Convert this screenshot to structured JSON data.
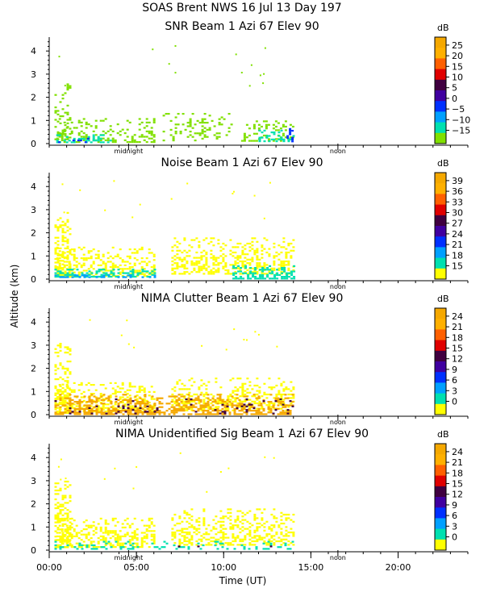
{
  "page_title": "SOAS Brent NWS  16 Jul 13 Day 197",
  "ylabel": "Altitude (km)",
  "xlabel": "Time (UT)",
  "x_ticks": [
    "00:00",
    "05:00",
    "10:00",
    "15:00",
    "20:00"
  ],
  "x_tick_hours": [
    0,
    5,
    10,
    15,
    20
  ],
  "x_range_hours": [
    0,
    24
  ],
  "marker_labels": [
    "midnight",
    "noon"
  ],
  "marker_hours": [
    4.55,
    16.55
  ],
  "y_ticks": [
    "0",
    "1",
    "2",
    "3",
    "4"
  ],
  "ylim_km": [
    0,
    4.6
  ],
  "unit_label": "dB",
  "chart_data": [
    {
      "type": "heatmap",
      "title": "SNR Beam 1 Azi  67 Elev 90",
      "colorbar_labels": [
        "25",
        "20",
        "15",
        "10",
        "5",
        "0",
        "−5",
        "−10",
        "−15"
      ],
      "colorbar_colors": [
        "#f5a800",
        "#ffb000",
        "#ff6000",
        "#e00000",
        "#400040",
        "#4000a0",
        "#0030ff",
        "#00a0ff",
        "#00e0b0",
        "#80e000"
      ],
      "data_extent_hours": [
        0.3,
        14.0
      ],
      "clusters": [
        {
          "t0": 0.3,
          "t1": 1.2,
          "z0": 0.15,
          "z1": 2.6,
          "density": 0.35,
          "color": "#80e000"
        },
        {
          "t0": 0.4,
          "t1": 6.0,
          "z0": 0.05,
          "z1": 1.1,
          "density": 0.3,
          "color": "#80e000"
        },
        {
          "t0": 0.4,
          "t1": 3.5,
          "z0": 0.05,
          "z1": 0.4,
          "density": 0.35,
          "color": "#00e0b0"
        },
        {
          "t0": 0.5,
          "t1": 2.5,
          "z0": 0.05,
          "z1": 0.25,
          "density": 0.2,
          "color": "#0030ff"
        },
        {
          "t0": 6.5,
          "t1": 10.5,
          "z0": 0.1,
          "z1": 1.4,
          "density": 0.22,
          "color": "#80e000"
        },
        {
          "t0": 11.0,
          "t1": 14.0,
          "z0": 0.1,
          "z1": 1.0,
          "density": 0.3,
          "color": "#80e000"
        },
        {
          "t0": 12.0,
          "t1": 14.0,
          "z0": 0.1,
          "z1": 0.6,
          "density": 0.35,
          "color": "#00e0b0"
        },
        {
          "t0": 13.6,
          "t1": 14.0,
          "z0": 0.1,
          "z1": 0.9,
          "density": 0.6,
          "color": "#0030ff"
        }
      ]
    },
    {
      "type": "heatmap",
      "title": "Noise Beam 1 Azi  67 Elev 90",
      "colorbar_labels": [
        "39",
        "36",
        "33",
        "30",
        "27",
        "24",
        "21",
        "18",
        "15"
      ],
      "colorbar_colors": [
        "#f5a800",
        "#ffb000",
        "#ff6000",
        "#e00000",
        "#400040",
        "#4000a0",
        "#0030ff",
        "#00a0ff",
        "#00e0b0",
        "#ffff00"
      ],
      "data_extent_hours": [
        0.3,
        14.0
      ],
      "clusters": [
        {
          "t0": 0.3,
          "t1": 1.2,
          "z0": 0.1,
          "z1": 2.9,
          "density": 0.55,
          "color": "#ffff00"
        },
        {
          "t0": 0.4,
          "t1": 6.0,
          "z0": 0.1,
          "z1": 1.4,
          "density": 0.5,
          "color": "#ffff00"
        },
        {
          "t0": 0.3,
          "t1": 6.0,
          "z0": 0.1,
          "z1": 0.45,
          "density": 0.6,
          "color": "#00e0b0"
        },
        {
          "t0": 0.3,
          "t1": 6.0,
          "z0": 0.05,
          "z1": 0.2,
          "density": 0.5,
          "color": "#00a0ff"
        },
        {
          "t0": 7.0,
          "t1": 14.0,
          "z0": 0.2,
          "z1": 1.8,
          "density": 0.45,
          "color": "#ffff00"
        },
        {
          "t0": 10.5,
          "t1": 14.0,
          "z0": 0.05,
          "z1": 0.6,
          "density": 0.55,
          "color": "#00e0b0"
        }
      ]
    },
    {
      "type": "heatmap",
      "title": "NIMA Clutter Beam 1 Azi  67 Elev 90",
      "colorbar_labels": [
        "24",
        "21",
        "18",
        "15",
        "12",
        "9",
        "6",
        "3",
        "0"
      ],
      "colorbar_colors": [
        "#f5a800",
        "#ffb000",
        "#ff6000",
        "#e00000",
        "#400040",
        "#4000a0",
        "#0030ff",
        "#00a0ff",
        "#00e0b0",
        "#ffff00"
      ],
      "data_extent_hours": [
        0.3,
        14.0
      ],
      "clusters": [
        {
          "t0": 0.3,
          "t1": 1.2,
          "z0": 0.1,
          "z1": 3.1,
          "density": 0.55,
          "color": "#ffff00"
        },
        {
          "t0": 0.4,
          "t1": 6.0,
          "z0": 0.1,
          "z1": 1.4,
          "density": 0.45,
          "color": "#ffff00"
        },
        {
          "t0": 7.0,
          "t1": 14.0,
          "z0": 0.2,
          "z1": 1.6,
          "density": 0.4,
          "color": "#ffff00"
        },
        {
          "t0": 0.3,
          "t1": 14.0,
          "z0": 0.05,
          "z1": 0.9,
          "density": 0.55,
          "color": "#f5a800"
        },
        {
          "t0": 0.3,
          "t1": 14.0,
          "z0": 0.05,
          "z1": 0.7,
          "density": 0.08,
          "color": "#400040"
        }
      ]
    },
    {
      "type": "heatmap",
      "title": "NIMA Unidentified Sig Beam 1 Azi  67 Elev 90",
      "colorbar_labels": [
        "24",
        "21",
        "18",
        "15",
        "12",
        "9",
        "6",
        "3",
        "0"
      ],
      "colorbar_colors": [
        "#f5a800",
        "#ffb000",
        "#ff6000",
        "#e00000",
        "#400040",
        "#4000a0",
        "#0030ff",
        "#00a0ff",
        "#00e0b0",
        "#ffff00"
      ],
      "data_extent_hours": [
        0.3,
        14.0
      ],
      "clusters": [
        {
          "t0": 0.3,
          "t1": 1.2,
          "z0": 0.1,
          "z1": 3.0,
          "density": 0.55,
          "color": "#ffff00"
        },
        {
          "t0": 0.4,
          "t1": 6.0,
          "z0": 0.1,
          "z1": 1.4,
          "density": 0.5,
          "color": "#ffff00"
        },
        {
          "t0": 7.0,
          "t1": 14.0,
          "z0": 0.2,
          "z1": 1.8,
          "density": 0.45,
          "color": "#ffff00"
        },
        {
          "t0": 0.3,
          "t1": 14.0,
          "z0": 0.05,
          "z1": 0.4,
          "density": 0.25,
          "color": "#00e0b0"
        },
        {
          "t0": 0.3,
          "t1": 14.0,
          "z0": 0.05,
          "z1": 0.2,
          "density": 0.06,
          "color": "#400040"
        }
      ]
    }
  ]
}
